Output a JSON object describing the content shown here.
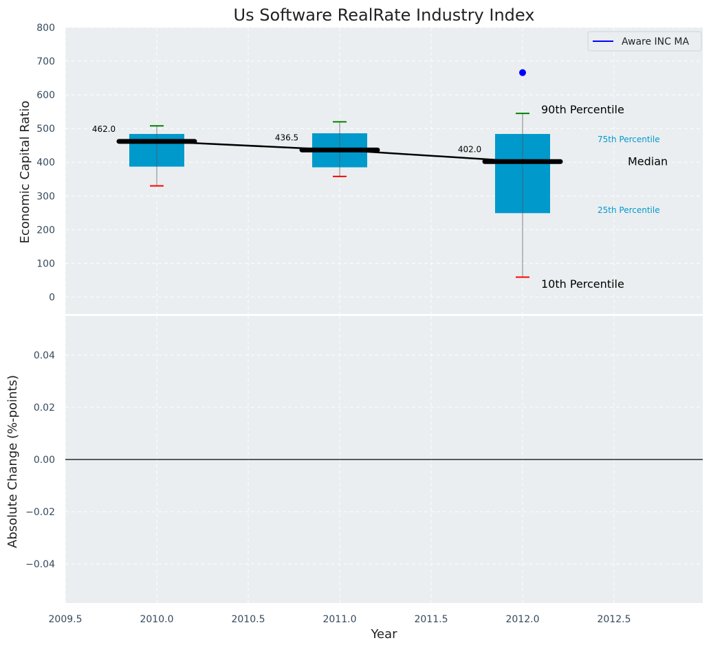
{
  "chart_data": [
    {
      "type": "box",
      "title": "Us Software RealRate Industry Index",
      "xlabel": "",
      "ylabel": "Economic Capital Ratio",
      "xlim": [
        2009.5,
        2012.985
      ],
      "ylim": [
        -50,
        800
      ],
      "grid": true,
      "yticks": [
        0,
        100,
        200,
        300,
        400,
        500,
        600,
        700,
        800
      ],
      "ytick_labels": [
        "0",
        "100",
        "200",
        "300",
        "400",
        "500",
        "600",
        "700",
        "800"
      ],
      "boxes": [
        {
          "x": 2010,
          "p10": 330,
          "p25": 387,
          "median": 462.0,
          "p75": 484,
          "p90": 508,
          "median_label": "462.0"
        },
        {
          "x": 2011,
          "p10": 358,
          "p25": 385,
          "median": 436.5,
          "p75": 486,
          "p90": 520,
          "median_label": "436.5"
        },
        {
          "x": 2012,
          "p10": 59,
          "p25": 249,
          "median": 402.0,
          "p75": 484,
          "p90": 545,
          "median_label": "402.0"
        }
      ],
      "series": [
        {
          "name": "median-trend",
          "x": [
            2010,
            2011,
            2012
          ],
          "values": [
            462.0,
            436.5,
            402.0
          ],
          "color": "#000000"
        },
        {
          "name": "Aware INC MA",
          "x": [
            2012
          ],
          "values": [
            666
          ],
          "color": "#0000ff"
        }
      ],
      "legend": {
        "entries": [
          "Aware INC MA"
        ],
        "placement": "top-right"
      },
      "annotations": {
        "p90": "90th Percentile",
        "p75": "75th Percentile",
        "median": "Median",
        "p25": "25th Percentile",
        "p10": "10th Percentile"
      },
      "colors": {
        "box": "#0099cc",
        "p90": "#008000",
        "p10": "#ff0000",
        "median": "#000000",
        "company": "#0000ff",
        "background": "#eaeef0"
      }
    },
    {
      "type": "line",
      "title": "",
      "xlabel": "Year",
      "ylabel": "Absolute Change (%-points)",
      "xlim": [
        2009.5,
        2012.985
      ],
      "ylim": [
        -0.055,
        0.055
      ],
      "grid": true,
      "xticks": [
        2009.5,
        2010.0,
        2010.5,
        2011.0,
        2011.5,
        2012.0,
        2012.5
      ],
      "xtick_labels": [
        "2009.5",
        "2010.0",
        "2010.5",
        "2011.0",
        "2011.5",
        "2012.0",
        "2012.5"
      ],
      "yticks": [
        -0.04,
        -0.02,
        0.0,
        0.02,
        0.04
      ],
      "ytick_labels": [
        "−0.04",
        "−0.02",
        "0.00",
        "0.02",
        "0.04"
      ],
      "reference_line": 0.0,
      "series": []
    }
  ]
}
